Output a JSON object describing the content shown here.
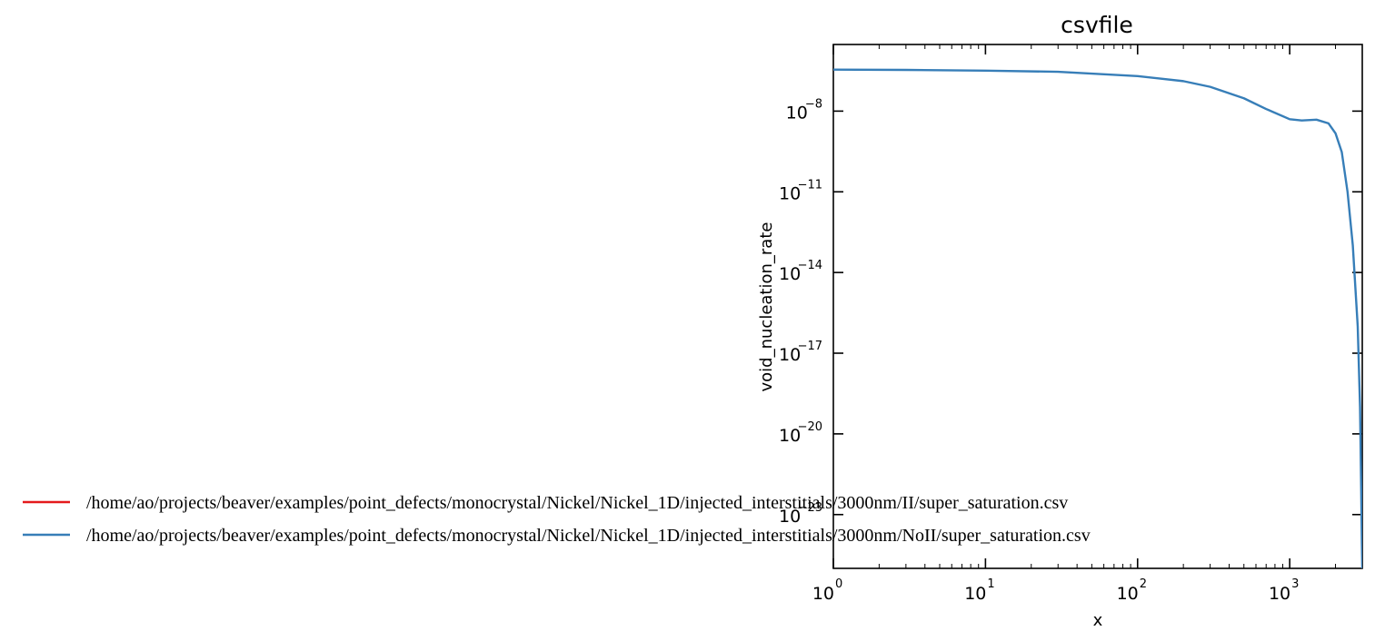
{
  "chart_data": {
    "type": "line",
    "title": "csvfile",
    "xlabel": "x",
    "ylabel": "void_nucleation_rate",
    "xscale": "log",
    "yscale": "log",
    "xlim": [
      1,
      3000
    ],
    "ylim": [
      1e-25,
      3e-06
    ],
    "x_ticks": [
      {
        "value": 1,
        "base": "10",
        "exp": "0"
      },
      {
        "value": 10,
        "base": "10",
        "exp": "1"
      },
      {
        "value": 100,
        "base": "10",
        "exp": "2"
      },
      {
        "value": 1000,
        "base": "10",
        "exp": "3"
      }
    ],
    "y_ticks": [
      {
        "value": 1e-08,
        "base": "10",
        "exp": "−8"
      },
      {
        "value": 1e-11,
        "base": "10",
        "exp": "−11"
      },
      {
        "value": 1e-14,
        "base": "10",
        "exp": "−14"
      },
      {
        "value": 1e-17,
        "base": "10",
        "exp": "−17"
      },
      {
        "value": 1e-20,
        "base": "10",
        "exp": "−20"
      },
      {
        "value": 1e-23,
        "base": "10",
        "exp": "−23"
      }
    ],
    "legend_position": "lower-left",
    "series": [
      {
        "name": "/home/ao/projects/beaver/examples/point_defects/monocrystal/Nickel/Nickel_1D/injected_interstitials/3000nm/II/super_saturation.csv",
        "color": "#e41a1c",
        "x": [],
        "y": []
      },
      {
        "name": "/home/ao/projects/beaver/examples/point_defects/monocrystal/Nickel/Nickel_1D/injected_interstitials/3000nm/NoII/super_saturation.csv",
        "color": "#377eb8",
        "x": [
          1,
          3,
          10,
          30,
          100,
          200,
          300,
          500,
          700,
          1000,
          1200,
          1500,
          1800,
          2000,
          2200,
          2400,
          2600,
          2800,
          2900,
          2950,
          2980,
          3000
        ],
        "y": [
          3.5e-07,
          3.4e-07,
          3.2e-07,
          2.9e-07,
          2e-07,
          1.3e-07,
          8e-08,
          3e-08,
          1.2e-08,
          5e-09,
          4.5e-09,
          4.8e-09,
          3.5e-09,
          1.5e-09,
          3e-10,
          1e-11,
          1e-13,
          1e-16,
          1e-19,
          1e-22,
          1e-24,
          1e-25
        ]
      }
    ]
  }
}
